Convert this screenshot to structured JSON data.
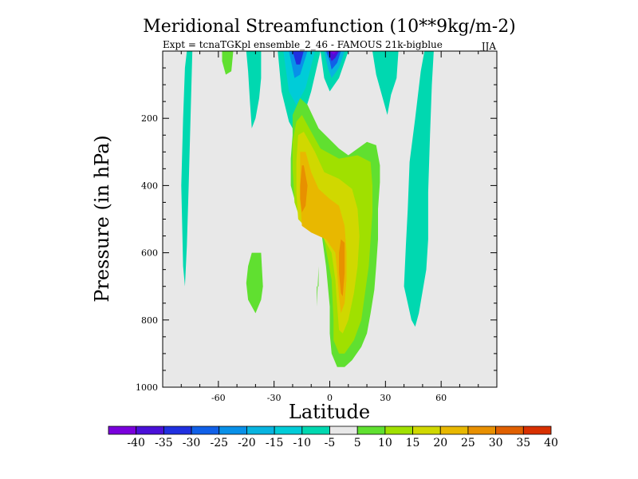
{
  "chart_data": {
    "type": "contour",
    "title": "Meridional Streamfunction (10**9kg/m-2)",
    "subtitle_left": "Expt = tcnaTGKpl ensemble_2_46 - FAMOUS 21k-bigblue",
    "subtitle_right": "JJA",
    "xlabel": "Latitude",
    "ylabel": "Pressure (in hPa)",
    "xlim": [
      -90,
      90
    ],
    "ylim": [
      1000,
      0
    ],
    "x_ticks": [
      -60,
      -30,
      0,
      30,
      60
    ],
    "x_tick_labels": [
      "-60",
      "-30",
      "0",
      "30",
      "60"
    ],
    "y_ticks": [
      200,
      400,
      600,
      800,
      1000
    ],
    "y_tick_labels": [
      "200",
      "400",
      "600",
      "800",
      "1000"
    ],
    "background_color": "#e8e8e8",
    "colorbar": {
      "labels": [
        "-40",
        "-35",
        "-30",
        "-25",
        "-20",
        "-15",
        "-10",
        "-5",
        "5",
        "10",
        "15",
        "20",
        "25",
        "30",
        "35",
        "40"
      ],
      "colors": [
        "#7a00dc",
        "#4a10d8",
        "#2030e0",
        "#1060e8",
        "#0890e8",
        "#08b4e0",
        "#00ccd8",
        "#00d8b0",
        "#e8e8e8",
        "#60e030",
        "#a0e000",
        "#d0d800",
        "#e8b800",
        "#e89000",
        "#e06000",
        "#d83000"
      ]
    },
    "contours": [
      {
        "level": "-5 to -10",
        "color": "#00d8b0",
        "points": [
          [
            -77,
            0
          ],
          [
            -74,
            0
          ],
          [
            -75,
            200
          ],
          [
            -76,
            400
          ],
          [
            -77,
            580
          ],
          [
            -78,
            700
          ],
          [
            -79,
            640
          ],
          [
            -80,
            400
          ],
          [
            -79,
            200
          ],
          [
            -78,
            50
          ]
        ]
      },
      {
        "level": "5 to 10",
        "color": "#60e030",
        "points": [
          [
            -58,
            0
          ],
          [
            -52,
            0
          ],
          [
            -53,
            60
          ],
          [
            -56,
            70
          ],
          [
            -58,
            30
          ]
        ]
      },
      {
        "level": "-5 to -10",
        "color": "#00d8b0",
        "points": [
          [
            -45,
            0
          ],
          [
            -37,
            0
          ],
          [
            -37,
            80
          ],
          [
            -38,
            140
          ],
          [
            -40,
            200
          ],
          [
            -42,
            230
          ],
          [
            -43,
            150
          ],
          [
            -44,
            60
          ]
        ]
      },
      {
        "level": "-5 to -10",
        "color": "#00d8b0",
        "points": [
          [
            -28,
            0
          ],
          [
            -5,
            0
          ],
          [
            -10,
            120
          ],
          [
            -15,
            210
          ],
          [
            -18,
            250
          ],
          [
            -22,
            210
          ],
          [
            -26,
            120
          ]
        ]
      },
      {
        "level": "-10 to -15",
        "color": "#00ccd8",
        "points": [
          [
            -25,
            0
          ],
          [
            -8,
            0
          ],
          [
            -13,
            110
          ],
          [
            -18,
            160
          ],
          [
            -22,
            120
          ]
        ]
      },
      {
        "level": "-20 to -25",
        "color": "#0890e8",
        "points": [
          [
            -22,
            0
          ],
          [
            -12,
            0
          ],
          [
            -16,
            70
          ],
          [
            -19,
            80
          ]
        ]
      },
      {
        "level": "-30 to -35",
        "color": "#2030e0",
        "points": [
          [
            -20,
            0
          ],
          [
            -14,
            0
          ],
          [
            -16,
            40
          ],
          [
            -18,
            40
          ]
        ]
      },
      {
        "level": "-5 to -10",
        "color": "#00d8b0",
        "points": [
          [
            -5,
            0
          ],
          [
            10,
            0
          ],
          [
            5,
            80
          ],
          [
            0,
            120
          ],
          [
            -3,
            80
          ]
        ]
      },
      {
        "level": "-15 to -20",
        "color": "#08b4e0",
        "points": [
          [
            -3,
            0
          ],
          [
            8,
            0
          ],
          [
            5,
            50
          ],
          [
            1,
            80
          ],
          [
            -1,
            50
          ]
        ]
      },
      {
        "level": "-25 to -30",
        "color": "#1060e8",
        "points": [
          [
            -2,
            0
          ],
          [
            6,
            0
          ],
          [
            4,
            35
          ],
          [
            1,
            55
          ],
          [
            0,
            30
          ]
        ]
      },
      {
        "level": "-35 to -40",
        "color": "#4a10d8",
        "points": [
          [
            -1,
            0
          ],
          [
            5,
            0
          ],
          [
            3,
            20
          ],
          [
            1,
            30
          ]
        ]
      },
      {
        "level": "< -40",
        "color": "#7a00dc",
        "points": [
          [
            0,
            0
          ],
          [
            4,
            0
          ],
          [
            2,
            10
          ]
        ]
      },
      {
        "level": "-5 to -10",
        "color": "#00d8b0",
        "points": [
          [
            23,
            0
          ],
          [
            37,
            0
          ],
          [
            36,
            80
          ],
          [
            33,
            130
          ],
          [
            31,
            190
          ],
          [
            28,
            130
          ],
          [
            25,
            70
          ]
        ]
      },
      {
        "level": "-5 to -10",
        "color": "#00d8b0",
        "points": [
          [
            51,
            0
          ],
          [
            56,
            0
          ],
          [
            55,
            100
          ],
          [
            54,
            250
          ],
          [
            53,
            420
          ],
          [
            53,
            560
          ],
          [
            52,
            650
          ],
          [
            48,
            780
          ],
          [
            46,
            820
          ],
          [
            44,
            800
          ],
          [
            40,
            700
          ],
          [
            41,
            580
          ],
          [
            42,
            470
          ],
          [
            43,
            330
          ],
          [
            46,
            200
          ],
          [
            49,
            60
          ]
        ]
      },
      {
        "level": "5 to 10",
        "color": "#60e030",
        "points": [
          [
            -42,
            600
          ],
          [
            -37,
            600
          ],
          [
            -36,
            700
          ],
          [
            -37,
            740
          ],
          [
            -40,
            780
          ],
          [
            -44,
            740
          ],
          [
            -45,
            690
          ],
          [
            -44,
            640
          ]
        ]
      },
      {
        "level": "5 to 10",
        "color": "#60e030",
        "points": [
          [
            -6,
            700
          ],
          [
            -6,
            640
          ],
          [
            -7,
            760
          ],
          [
            -7,
            700
          ]
        ]
      },
      {
        "level": "5 to 10",
        "color": "#60e030",
        "points": [
          [
            -20,
            190
          ],
          [
            -16,
            140
          ],
          [
            -12,
            160
          ],
          [
            -6,
            230
          ],
          [
            5,
            290
          ],
          [
            10,
            310
          ],
          [
            20,
            270
          ],
          [
            25,
            280
          ],
          [
            27,
            340
          ],
          [
            27,
            390
          ],
          [
            26,
            470
          ],
          [
            26,
            560
          ],
          [
            25,
            640
          ],
          [
            24,
            710
          ],
          [
            22,
            780
          ],
          [
            20,
            840
          ],
          [
            17,
            880
          ],
          [
            12,
            920
          ],
          [
            8,
            940
          ],
          [
            4,
            940
          ],
          [
            1,
            900
          ],
          [
            0,
            840
          ],
          [
            0,
            760
          ],
          [
            -2,
            640
          ],
          [
            -5,
            520
          ],
          [
            -12,
            490
          ],
          [
            -17,
            470
          ],
          [
            -19,
            440
          ],
          [
            -21,
            400
          ],
          [
            -21,
            320
          ],
          [
            -20,
            250
          ]
        ]
      },
      {
        "level": "10 to 15",
        "color": "#a0e000",
        "points": [
          [
            -18,
            210
          ],
          [
            -15,
            190
          ],
          [
            -10,
            240
          ],
          [
            -5,
            290
          ],
          [
            5,
            320
          ],
          [
            15,
            310
          ],
          [
            22,
            330
          ],
          [
            23,
            400
          ],
          [
            23,
            480
          ],
          [
            22,
            560
          ],
          [
            21,
            640
          ],
          [
            19,
            720
          ],
          [
            17,
            800
          ],
          [
            13,
            860
          ],
          [
            8,
            900
          ],
          [
            5,
            900
          ],
          [
            2,
            860
          ],
          [
            2,
            800
          ],
          [
            1,
            680
          ],
          [
            -3,
            560
          ],
          [
            -10,
            520
          ],
          [
            -16,
            500
          ],
          [
            -19,
            450
          ],
          [
            -20,
            350
          ],
          [
            -20,
            270
          ]
        ]
      },
      {
        "level": "15 to 20",
        "color": "#d0d800",
        "points": [
          [
            -17,
            250
          ],
          [
            -14,
            240
          ],
          [
            -8,
            300
          ],
          [
            -3,
            360
          ],
          [
            5,
            380
          ],
          [
            12,
            410
          ],
          [
            15,
            470
          ],
          [
            16,
            550
          ],
          [
            15,
            640
          ],
          [
            13,
            720
          ],
          [
            10,
            800
          ],
          [
            7,
            840
          ],
          [
            5,
            830
          ],
          [
            4,
            760
          ],
          [
            3,
            680
          ],
          [
            1,
            600
          ],
          [
            -4,
            550
          ],
          [
            -12,
            530
          ],
          [
            -17,
            500
          ],
          [
            -18,
            420
          ],
          [
            -18,
            330
          ]
        ]
      },
      {
        "level": "20 to 25",
        "color": "#e8b800",
        "points": [
          [
            -16,
            300
          ],
          [
            -13,
            300
          ],
          [
            -10,
            360
          ],
          [
            -6,
            410
          ],
          [
            0,
            440
          ],
          [
            5,
            460
          ],
          [
            8,
            520
          ],
          [
            9,
            600
          ],
          [
            9,
            680
          ],
          [
            8,
            750
          ],
          [
            6,
            780
          ],
          [
            5,
            730
          ],
          [
            4,
            660
          ],
          [
            3,
            600
          ],
          [
            -2,
            560
          ],
          [
            -10,
            540
          ],
          [
            -15,
            520
          ],
          [
            -16,
            440
          ],
          [
            -16,
            370
          ]
        ]
      },
      {
        "level": "25 to 30",
        "color": "#e89000",
        "points": [
          [
            -15,
            340
          ],
          [
            -14,
            340
          ],
          [
            -12,
            400
          ],
          [
            -13,
            460
          ],
          [
            -15,
            480
          ],
          [
            -16,
            440
          ],
          [
            -16,
            400
          ]
        ]
      },
      {
        "level": "25 to 30",
        "color": "#e89000",
        "points": [
          [
            6,
            560
          ],
          [
            8,
            570
          ],
          [
            8,
            660
          ],
          [
            7,
            730
          ],
          [
            6,
            720
          ],
          [
            5,
            660
          ],
          [
            5,
            600
          ]
        ]
      }
    ]
  }
}
